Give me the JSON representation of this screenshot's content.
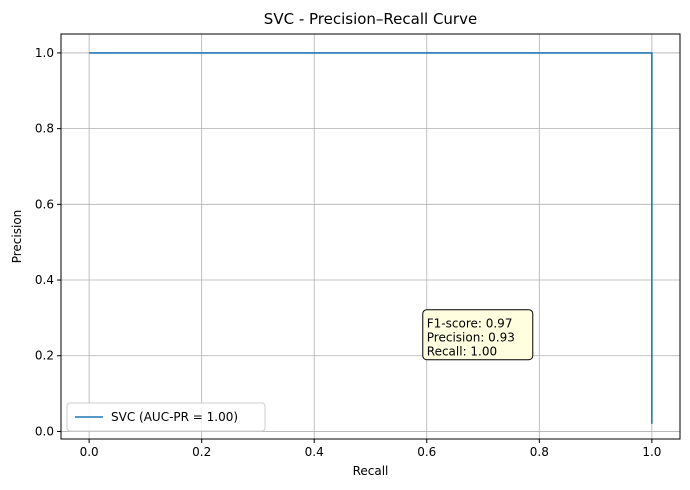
{
  "chart_data": {
    "type": "line",
    "title": "SVC - Precision–Recall Curve",
    "xlabel": "Recall",
    "ylabel": "Precision",
    "xlim": [
      -0.05,
      1.05
    ],
    "ylim": [
      -0.02,
      1.05
    ],
    "x_ticks": [
      0.0,
      0.2,
      0.4,
      0.6,
      0.8,
      1.0
    ],
    "y_ticks": [
      0.0,
      0.2,
      0.4,
      0.6,
      0.8,
      1.0
    ],
    "x_tick_labels": [
      "0.0",
      "0.2",
      "0.4",
      "0.6",
      "0.8",
      "1.0"
    ],
    "y_tick_labels": [
      "0.0",
      "0.2",
      "0.4",
      "0.6",
      "0.8",
      "1.0"
    ],
    "grid": true,
    "legend_position": "lower-left",
    "series": [
      {
        "name": "SVC (AUC-PR = 1.00)",
        "color": "#1f77b4",
        "x": [
          0.0,
          1.0,
          1.0
        ],
        "y": [
          1.0,
          1.0,
          0.02
        ]
      }
    ],
    "annotation": {
      "lines": [
        "F1-score: 0.97",
        "Precision: 0.93",
        "Recall: 1.00"
      ],
      "x": 0.6,
      "y": 0.2,
      "background": "#ffffe0"
    }
  }
}
